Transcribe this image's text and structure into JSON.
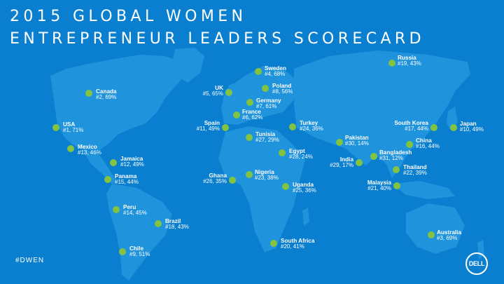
{
  "title": {
    "line1": "2015 GLOBAL WOMEN",
    "line2": "ENTREPRENEUR LEADERS SCORECARD"
  },
  "hashtag": "#DWEN",
  "logo": "DELL",
  "colors": {
    "background": "#0a7fcf",
    "land": "#1f93dc",
    "marker": "#82c341",
    "text": "#ffffff"
  },
  "markers": [
    {
      "name": "Canada",
      "stat": "#2, 69%",
      "lon": -100,
      "lat": 57
    },
    {
      "name": "USA",
      "stat": "#1, 71%",
      "lon": -101,
      "lat": 39
    },
    {
      "name": "Mexico",
      "stat": "#13, 46%",
      "lon": -102,
      "lat": 23
    },
    {
      "name": "Jamaica",
      "stat": "#12, 49%",
      "lon": -77,
      "lat": 18
    },
    {
      "name": "Panama",
      "stat": "#15, 44%",
      "lon": -80,
      "lat": 9
    },
    {
      "name": "Peru",
      "stat": "#14, 45%",
      "lon": -75,
      "lat": -10
    },
    {
      "name": "Brazil",
      "stat": "#18, 43%",
      "lon": -52,
      "lat": -13
    },
    {
      "name": "Chile",
      "stat": "#9, 51%",
      "lon": -71,
      "lat": -33
    },
    {
      "name": "UK",
      "stat": "#5, 65%",
      "lon": -2,
      "lat": 54
    },
    {
      "name": "Sweden",
      "stat": "#4, 68%",
      "lon": 16,
      "lat": 62
    },
    {
      "name": "Poland",
      "stat": "#8, 56%",
      "lon": 20,
      "lat": 52
    },
    {
      "name": "Germany",
      "stat": "#7, 61%",
      "lon": 10,
      "lat": 51
    },
    {
      "name": "France",
      "stat": "#6, 62%",
      "lon": 2,
      "lat": 46
    },
    {
      "name": "Spain",
      "stat": "#11, 49%",
      "lon": -4,
      "lat": 40
    },
    {
      "name": "Tunisia",
      "stat": "#27, 29%",
      "lon": 9,
      "lat": 34
    },
    {
      "name": "Turkey",
      "stat": "#24, 36%",
      "lon": 35,
      "lat": 39
    },
    {
      "name": "Egypt",
      "stat": "#28, 24%",
      "lon": 30,
      "lat": 27
    },
    {
      "name": "Ghana",
      "stat": "#26, 35%",
      "lon": -1,
      "lat": 8
    },
    {
      "name": "Nigeria",
      "stat": "#23, 38%",
      "lon": 8,
      "lat": 9
    },
    {
      "name": "Uganda",
      "stat": "#25, 36%",
      "lon": 32,
      "lat": 1
    },
    {
      "name": "South Africa",
      "stat": "#20, 41%",
      "lon": 25,
      "lat": -29
    },
    {
      "name": "Russia",
      "stat": "#19, 43%",
      "lon": 95,
      "lat": 62
    },
    {
      "name": "Pakistan",
      "stat": "#30, 14%",
      "lon": 70,
      "lat": 30
    },
    {
      "name": "India",
      "stat": "#29,  17%",
      "lon": 79,
      "lat": 22
    },
    {
      "name": "Bangladesh",
      "stat": "#31, 12%",
      "lon": 90,
      "lat": 24
    },
    {
      "name": "China",
      "stat": "#16, 44%",
      "lon": 103,
      "lat": 35
    },
    {
      "name": "South Korea",
      "stat": "#17, 44%",
      "lon": 128,
      "lat": 36
    },
    {
      "name": "Japan",
      "stat": "#10, 49%",
      "lon": 138,
      "lat": 37
    },
    {
      "name": "Thailand",
      "stat": "#22, 39%",
      "lon": 101,
      "lat": 15
    },
    {
      "name": "Malaysia",
      "stat": "#21, 40%",
      "lon": 102,
      "lat": 4
    },
    {
      "name": "Australia",
      "stat": "#3, 69%",
      "lon": 134,
      "lat": -25
    }
  ]
}
